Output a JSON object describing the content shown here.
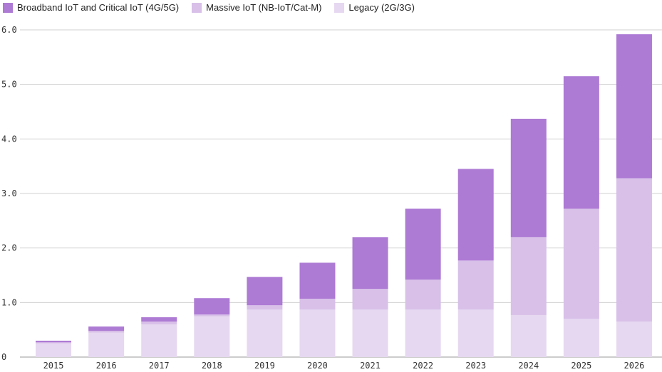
{
  "chart_data": {
    "type": "bar",
    "stacked": true,
    "categories": [
      "2015",
      "2016",
      "2017",
      "2018",
      "2019",
      "2020",
      "2021",
      "2022",
      "2023",
      "2024",
      "2025",
      "2026"
    ],
    "series": [
      {
        "name": "Legacy (2G/3G)",
        "color": "#e6d8f0",
        "values": [
          0.25,
          0.45,
          0.6,
          0.75,
          0.87,
          0.87,
          0.87,
          0.87,
          0.87,
          0.77,
          0.7,
          0.65
        ]
      },
      {
        "name": "Massive IoT (NB-IoT/Cat-M)",
        "color": "#d8c0e9",
        "values": [
          0.02,
          0.03,
          0.05,
          0.03,
          0.08,
          0.2,
          0.38,
          0.55,
          0.9,
          1.43,
          2.02,
          2.63
        ]
      },
      {
        "name": "Broadband IoT and Critical IoT (4G/5G)",
        "color": "#ad7ad4",
        "values": [
          0.03,
          0.08,
          0.08,
          0.3,
          0.52,
          0.66,
          0.95,
          1.3,
          1.68,
          2.17,
          2.43,
          2.64
        ]
      }
    ],
    "yticks": [
      "0",
      "1.0",
      "2.0",
      "3.0",
      "4.0",
      "5.0",
      "6.0"
    ],
    "ylim": [
      0,
      6.0
    ],
    "grid": true,
    "legend": "top-left"
  },
  "legend": [
    {
      "label": "Broadband IoT and Critical IoT (4G/5G)",
      "color": "#ad7ad4"
    },
    {
      "label": "Massive IoT (NB-IoT/Cat-M)",
      "color": "#d8c0e9"
    },
    {
      "label": "Legacy (2G/3G)",
      "color": "#e6d8f0"
    }
  ]
}
